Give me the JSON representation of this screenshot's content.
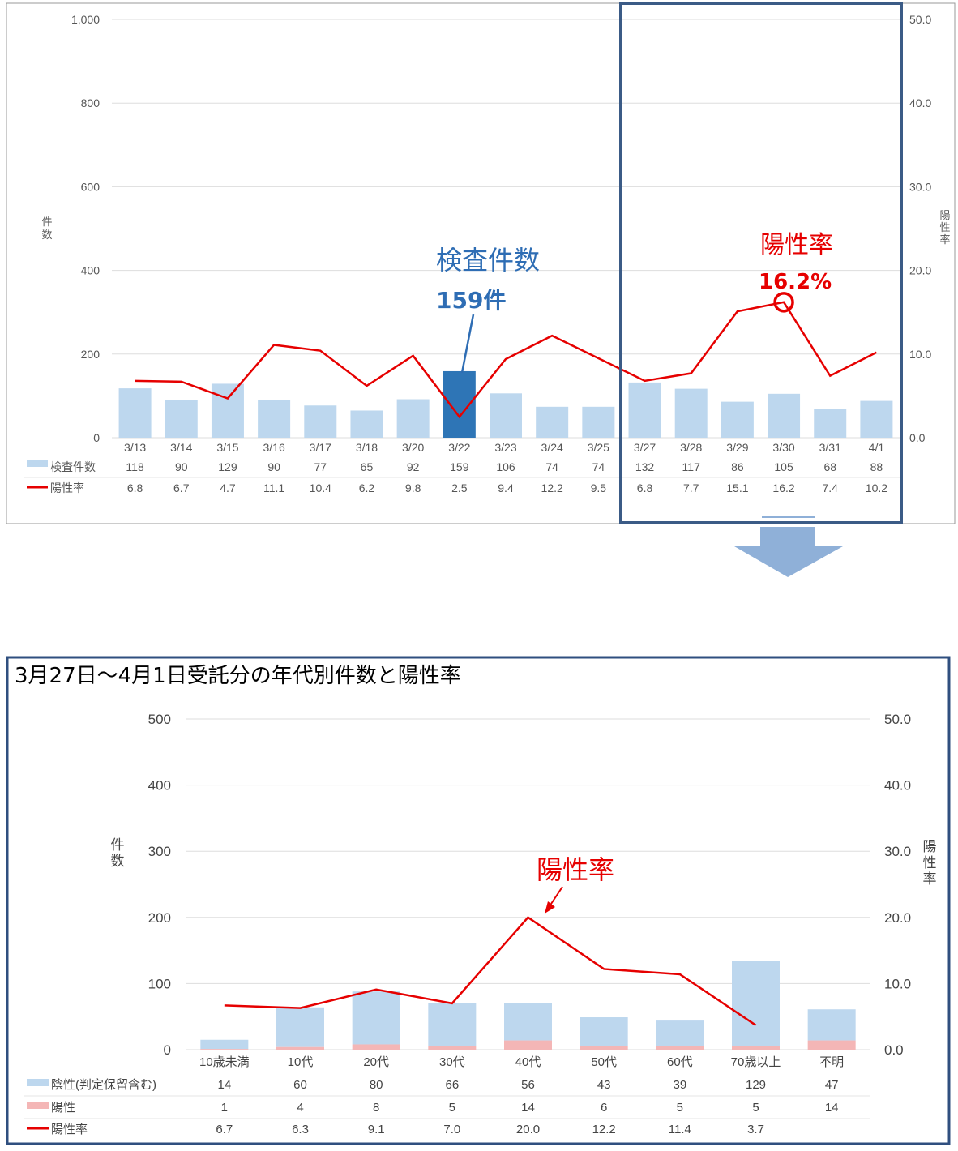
{
  "chart_data": [
    {
      "type": "bar",
      "categories": [
        "3/13",
        "3/14",
        "3/15",
        "3/16",
        "3/17",
        "3/18",
        "3/20",
        "3/22",
        "3/23",
        "3/24",
        "3/25",
        "3/27",
        "3/28",
        "3/29",
        "3/30",
        "3/31",
        "4/1"
      ],
      "y_ticks": [
        "1,000",
        "800",
        "600",
        "400",
        "200",
        "0"
      ],
      "y2_ticks": [
        "50.0",
        "40.0",
        "30.0",
        "20.0",
        "10.0",
        "0.0"
      ],
      "ylim": [
        0,
        1000
      ],
      "y2lim": [
        0,
        50
      ],
      "ylabel": "件数",
      "y2label": "陽性率",
      "grid": true,
      "highlight_category": "3/22",
      "series": [
        {
          "name": "検査件数",
          "kind": "bar",
          "color": "#bdd7ee",
          "values": [
            118,
            90,
            129,
            90,
            77,
            65,
            92,
            159,
            106,
            74,
            74,
            132,
            117,
            86,
            105,
            68,
            88
          ],
          "labels": [
            "118",
            "90",
            "129",
            "90",
            "77",
            "65",
            "92",
            "159",
            "106",
            "74",
            "74",
            "132",
            "117",
            "86",
            "105",
            "68",
            "88"
          ]
        },
        {
          "name": "陽性率",
          "kind": "line",
          "color": "#e60000",
          "values": [
            6.8,
            6.7,
            4.7,
            11.1,
            10.4,
            6.2,
            9.8,
            2.5,
            9.4,
            12.2,
            9.5,
            6.8,
            7.7,
            15.1,
            16.2,
            7.4,
            10.2
          ],
          "labels": [
            "6.8",
            "6.7",
            "4.7",
            "11.1",
            "10.4",
            "6.2",
            "9.8",
            "2.5",
            "9.4",
            "12.2",
            "9.5",
            "6.8",
            "7.7",
            "15.1",
            "16.2",
            "7.4",
            "10.2"
          ]
        }
      ],
      "annotations": {
        "tests_title": "検査件数",
        "tests_value": "159件",
        "rate_title": "陽性率",
        "rate_value": "16.2%"
      },
      "colors": {
        "highlight_bar": "#2e75b6",
        "frame": "#3b5b86",
        "arrow": "#8fb0d8"
      }
    },
    {
      "type": "bar",
      "title": "3月27日～4月1日受託分の年代別件数と陽性率",
      "categories": [
        "10歳未満",
        "10代",
        "20代",
        "30代",
        "40代",
        "50代",
        "60代",
        "70歳以上",
        "不明"
      ],
      "y_ticks": [
        "500",
        "400",
        "300",
        "200",
        "100",
        "0"
      ],
      "y2_ticks": [
        "50.0",
        "40.0",
        "30.0",
        "20.0",
        "10.0",
        "0.0"
      ],
      "ylim": [
        0,
        500
      ],
      "y2lim": [
        0,
        50
      ],
      "ylabel": "件数",
      "y2label": "陽性率",
      "grid": true,
      "stacked": true,
      "series": [
        {
          "name": "陰性(判定保留含む)",
          "kind": "bar",
          "color": "#bdd7ee",
          "values": [
            14,
            60,
            80,
            66,
            56,
            43,
            39,
            129,
            47
          ],
          "labels": [
            "14",
            "60",
            "80",
            "66",
            "56",
            "43",
            "39",
            "129",
            "47"
          ]
        },
        {
          "name": "陽性",
          "kind": "bar",
          "color": "#f4b6b6",
          "values": [
            1,
            4,
            8,
            5,
            14,
            6,
            5,
            5,
            14
          ],
          "labels": [
            "1",
            "4",
            "8",
            "5",
            "14",
            "6",
            "5",
            "5",
            "14"
          ]
        },
        {
          "name": "陽性率",
          "kind": "line",
          "color": "#e60000",
          "values": [
            6.7,
            6.3,
            9.1,
            7.0,
            20.0,
            12.2,
            11.4,
            3.7,
            null
          ],
          "labels": [
            "6.7",
            "6.3",
            "9.1",
            "7.0",
            "20.0",
            "12.2",
            "11.4",
            "3.7",
            ""
          ]
        }
      ],
      "annotations": {
        "rate_title": "陽性率"
      },
      "colors": {
        "frame": "#2f4f7f"
      }
    }
  ]
}
